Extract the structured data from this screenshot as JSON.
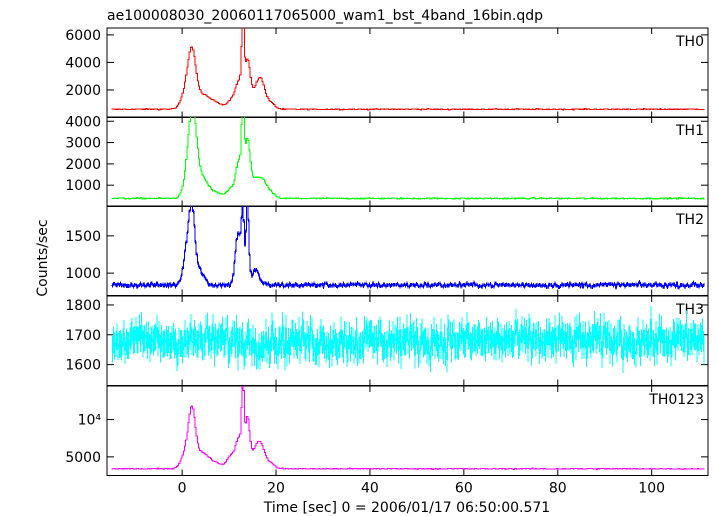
{
  "chart_data": {
    "type": "line",
    "title": "ae100008030_20060117065000_wam1_bst_4band_16bin.qdp",
    "xlabel": "Time [sec] 0 = 2006/01/17 06:50:00.571",
    "ylabel": "Counts/sec",
    "xlim": [
      -16,
      112
    ],
    "x_ticks": [
      0,
      20,
      40,
      60,
      80,
      100
    ],
    "x_tick_labels": [
      "0",
      "20",
      "40",
      "60",
      "80",
      "100"
    ],
    "grid": false,
    "bin_sec": 0.25,
    "panels": [
      {
        "name": "TH0",
        "color": "#ff0000",
        "ylim": [
          0,
          6500
        ],
        "y_ticks": [
          2000,
          4000,
          6000
        ],
        "y_tick_labels": [
          "2000",
          "4000",
          "6000"
        ],
        "baseline": 600,
        "noise": 35,
        "features": [
          [
            0.8,
            1200,
            1.0
          ],
          [
            2.0,
            3300,
            0.8
          ],
          [
            4.0,
            1100,
            2.0
          ],
          [
            7.5,
            250,
            1.0
          ],
          [
            10.5,
            700,
            1.0
          ],
          [
            12.0,
            1800,
            0.7
          ],
          [
            12.8,
            5600,
            0.25
          ],
          [
            13.8,
            3500,
            0.6
          ],
          [
            15.5,
            1100,
            0.8
          ],
          [
            16.7,
            1800,
            0.8
          ],
          [
            18.5,
            500,
            1.0
          ]
        ]
      },
      {
        "name": "TH1",
        "color": "#00ff00",
        "ylim": [
          0,
          4200
        ],
        "y_ticks": [
          1000,
          2000,
          3000,
          4000
        ],
        "y_tick_labels": [
          "1000",
          "2000",
          "3000",
          "4000"
        ],
        "baseline": 380,
        "noise": 30,
        "features": [
          [
            1.5,
            1600,
            1.0
          ],
          [
            2.2,
            2600,
            0.8
          ],
          [
            4.0,
            1000,
            1.5
          ],
          [
            7.5,
            200,
            1.0
          ],
          [
            10.5,
            500,
            1.0
          ],
          [
            12.0,
            1600,
            0.6
          ],
          [
            12.8,
            4100,
            0.25
          ],
          [
            13.8,
            2700,
            0.6
          ],
          [
            15.5,
            800,
            0.8
          ],
          [
            17.0,
            700,
            0.8
          ],
          [
            18.5,
            300,
            1.0
          ]
        ]
      },
      {
        "name": "TH2",
        "color": "#0000ff",
        "ylim": [
          700,
          1900
        ],
        "y_ticks": [
          1000,
          1500
        ],
        "y_tick_labels": [
          "1000",
          "1500"
        ],
        "baseline": 840,
        "noise": 28,
        "features": [
          [
            1.0,
            500,
            0.8
          ],
          [
            2.0,
            830,
            0.6
          ],
          [
            3.5,
            200,
            1.0
          ],
          [
            11.8,
            700,
            0.6
          ],
          [
            12.8,
            900,
            0.3
          ],
          [
            13.8,
            1050,
            0.3
          ],
          [
            15.5,
            200,
            0.8
          ]
        ]
      },
      {
        "name": "TH3",
        "color": "#00ffff",
        "ylim": [
          1530,
          1830
        ],
        "y_ticks": [
          1600,
          1700,
          1800
        ],
        "y_tick_labels": [
          "1600",
          "1700",
          "1800"
        ],
        "baseline": 1680,
        "noise": 50,
        "features": []
      },
      {
        "name": "TH0123",
        "color": "#ff00ff",
        "ylim": [
          2500,
          14500
        ],
        "y_ticks": [
          5000,
          10000
        ],
        "y_tick_labels": [
          "5000",
          "10⁴"
        ],
        "baseline": 3400,
        "noise": 70,
        "features": [
          [
            0.8,
            2200,
            1.0
          ],
          [
            2.0,
            6200,
            0.7
          ],
          [
            4.0,
            2200,
            1.8
          ],
          [
            7.5,
            450,
            1.0
          ],
          [
            10.5,
            1900,
            1.0
          ],
          [
            12.0,
            3600,
            0.6
          ],
          [
            12.8,
            10600,
            0.25
          ],
          [
            13.8,
            6800,
            0.5
          ],
          [
            15.5,
            2200,
            0.8
          ],
          [
            16.7,
            2600,
            0.8
          ],
          [
            18.5,
            800,
            1.0
          ]
        ]
      }
    ]
  }
}
